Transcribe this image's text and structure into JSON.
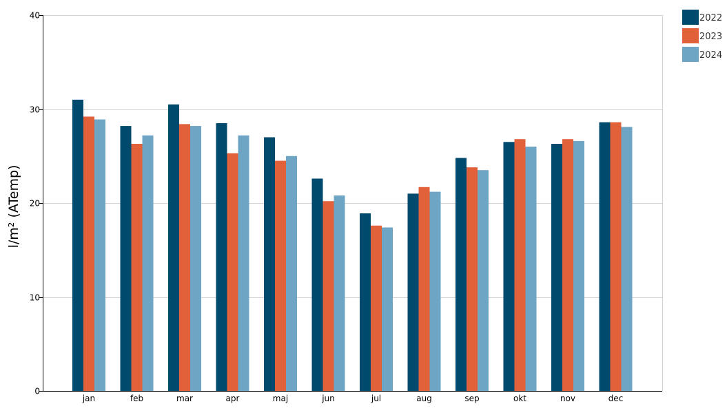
{
  "chart_data": {
    "type": "bar",
    "title": "",
    "xlabel": "",
    "ylabel": "l/m² (ATemp)",
    "ylim": [
      0,
      40
    ],
    "yticks": [
      0,
      10,
      20,
      30,
      40
    ],
    "grid": true,
    "legend_position": "top-right",
    "categories": [
      "jan",
      "feb",
      "mar",
      "apr",
      "maj",
      "jun",
      "jul",
      "aug",
      "sep",
      "okt",
      "nov",
      "dec"
    ],
    "series": [
      {
        "name": "2022",
        "color": "#004a6e",
        "values": [
          31.0,
          28.2,
          30.5,
          28.5,
          27.0,
          22.6,
          18.9,
          21.0,
          24.8,
          26.5,
          26.3,
          28.6
        ]
      },
      {
        "name": "2023",
        "color": "#e0613a",
        "values": [
          29.2,
          26.3,
          28.4,
          25.3,
          24.5,
          20.2,
          17.6,
          21.7,
          23.8,
          26.8,
          26.8,
          28.6
        ]
      },
      {
        "name": "2024",
        "color": "#6ea5c4",
        "values": [
          28.9,
          27.2,
          28.2,
          27.2,
          25.0,
          20.8,
          17.4,
          21.2,
          23.5,
          26.0,
          26.6,
          28.1
        ]
      }
    ]
  }
}
